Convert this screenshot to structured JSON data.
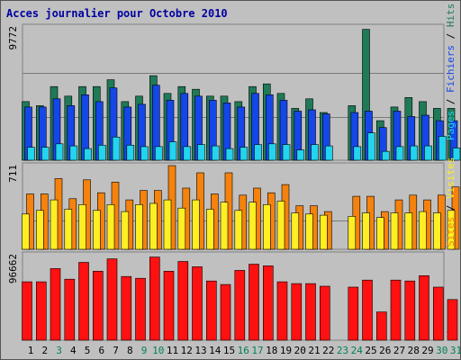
{
  "title": "Acces journalier pour Octobre 2010",
  "colors": {
    "hits": "#1f7a57",
    "fichiers": "#1546e8",
    "pages": "#22d4ee",
    "visites": "#f5820d",
    "sites": "#ffee22",
    "ko": "#ff1111",
    "day_default": "#000000",
    "day_weekend": "#00805a",
    "title": "#0000a0",
    "grid": "#7a7a7a"
  },
  "right_labels": {
    "top": [
      "Pages",
      "Fichiers",
      "Hits"
    ],
    "middle": [
      "Sites",
      "Visites"
    ],
    "bottom": [
      "Ko"
    ],
    "separator": " / "
  },
  "chart_data": {
    "type": "bar",
    "title": "Acces journalier pour Octobre 2010",
    "categories": [
      "1",
      "2",
      "3",
      "4",
      "5",
      "6",
      "7",
      "8",
      "9",
      "10",
      "11",
      "12",
      "13",
      "14",
      "15",
      "16",
      "17",
      "18",
      "19",
      "20",
      "21",
      "22",
      "23",
      "24",
      "25",
      "26",
      "27",
      "28",
      "29",
      "30",
      "31"
    ],
    "weekend_days": [
      "3",
      "9",
      "10",
      "16",
      "17",
      "23",
      "24",
      "30",
      "31"
    ],
    "panels": [
      {
        "name": "top",
        "ymax_label": "9772",
        "ylim": [
          0,
          9772
        ],
        "series": [
          {
            "name": "Hits",
            "values": [
              4300,
              4000,
              5400,
              4700,
              5400,
              5400,
              5900,
              4300,
              4700,
              6200,
              4900,
              5400,
              5200,
              4700,
              4700,
              4300,
              5400,
              5600,
              4900,
              3800,
              4500,
              3500,
              0,
              4000,
              9600,
              2900,
              3900,
              4600,
              4300,
              3800,
              3800
            ]
          },
          {
            "name": "Fichiers",
            "values": [
              3900,
              3900,
              4500,
              4000,
              4800,
              4300,
              5300,
              3900,
              4100,
              5500,
              4400,
              4900,
              4700,
              4400,
              4200,
              3900,
              4900,
              4800,
              4400,
              3600,
              3700,
              3400,
              0,
              3500,
              3600,
              2400,
              3600,
              3200,
              3300,
              2900,
              2900
            ]
          },
          {
            "name": "Pages",
            "values": [
              950,
              950,
              1200,
              1050,
              850,
              1100,
              1700,
              1100,
              1000,
              1000,
              1350,
              1000,
              1150,
              1050,
              850,
              950,
              1150,
              1200,
              1150,
              750,
              1150,
              1050,
              0,
              1000,
              2000,
              650,
              1000,
              1050,
              1050,
              1750,
              900
            ]
          }
        ]
      },
      {
        "name": "middle",
        "ymax_label": "711",
        "ylim": [
          0,
          711
        ],
        "series": [
          {
            "name": "Visites",
            "values": [
              470,
              470,
              600,
              430,
              590,
              480,
              570,
              420,
              500,
              500,
              711,
              520,
              650,
              470,
              650,
              460,
              520,
              480,
              550,
              370,
              370,
              320,
              0,
              450,
              450,
              320,
              420,
              460,
              420,
              460,
              530
            ]
          },
          {
            "name": "Sites",
            "values": [
              300,
              330,
              420,
              340,
              380,
              330,
              380,
              320,
              380,
              390,
              420,
              350,
              420,
              340,
              400,
              330,
              400,
              380,
              410,
              310,
              300,
              290,
              0,
              280,
              310,
              270,
              310,
              310,
              320,
              310,
              330
            ]
          }
        ]
      },
      {
        "name": "bottom",
        "ymax_label": "96662",
        "ylim": [
          0,
          96662
        ],
        "series": [
          {
            "name": "Ko",
            "values": [
              66000,
              66000,
              81000,
              69000,
              88000,
              78000,
              92000,
              72000,
              70000,
              94000,
              78000,
              89000,
              83000,
              67000,
              63000,
              79000,
              86000,
              84000,
              66000,
              64000,
              64000,
              61000,
              0,
              60000,
              68000,
              32000,
              68000,
              67000,
              73000,
              60000,
              46000
            ]
          }
        ]
      }
    ]
  }
}
